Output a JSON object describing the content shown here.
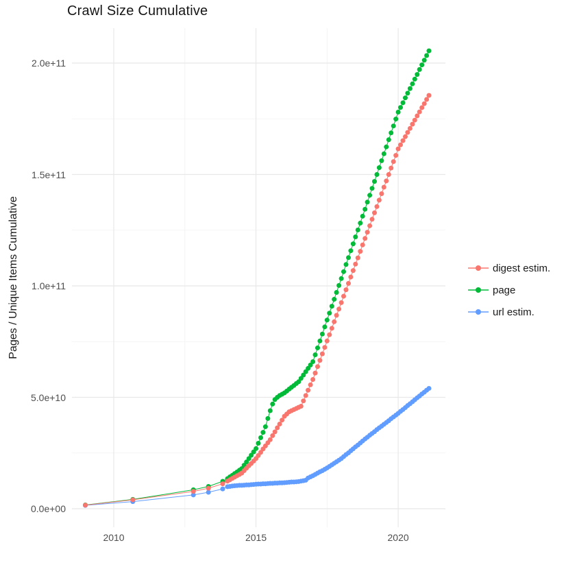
{
  "title": "Crawl Size Cumulative",
  "y_axis_title": "Pages / Unique Items Cumulative",
  "legend": {
    "items": [
      {
        "label": "digest estim.",
        "color": "#F8766D"
      },
      {
        "label": "page",
        "color": "#00BA38"
      },
      {
        "label": "url estim.",
        "color": "#619CFF"
      }
    ]
  },
  "colors": {
    "background": "#FFFFFF",
    "grid_major": "#E8E8E8",
    "grid_minor": "#F1F1F1",
    "tick_text": "#4D4D4D"
  },
  "chart_data": {
    "type": "scatter",
    "title": "Crawl Size Cumulative",
    "xlabel": "",
    "ylabel": "Pages / Unique Items Cumulative",
    "legend_position": "right",
    "grid": true,
    "value_unit": 1000000000.0,
    "x_domain": [
      2008.53,
      2021.66
    ],
    "y_domain": [
      -8.3,
      215.7
    ],
    "x_axis": {
      "ticks": [
        {
          "label": "2010",
          "value": 2010
        },
        {
          "label": "2015",
          "value": 2015
        },
        {
          "label": "2020",
          "value": 2020
        }
      ],
      "minor": [
        2012.5,
        2017.5
      ]
    },
    "y_axis": {
      "ticks": [
        {
          "label": "0.0e+00",
          "value": 0
        },
        {
          "label": "5.0e+10",
          "value": 50
        },
        {
          "label": "1.0e+11",
          "value": 100
        },
        {
          "label": "1.5e+11",
          "value": 150
        },
        {
          "label": "2.0e+11",
          "value": 200
        }
      ],
      "minor": [
        25,
        75,
        125,
        175
      ]
    },
    "x": [
      2009,
      2010.67,
      2012.8,
      2013.33,
      2013.83,
      2014,
      2014.083,
      2014.167,
      2014.25,
      2014.333,
      2014.417,
      2014.5,
      2014.583,
      2014.667,
      2014.75,
      2014.833,
      2014.917,
      2015,
      2015.083,
      2015.167,
      2015.25,
      2015.333,
      2015.417,
      2015.5,
      2015.583,
      2015.667,
      2015.75,
      2015.833,
      2015.917,
      2016,
      2016.083,
      2016.167,
      2016.25,
      2016.333,
      2016.417,
      2016.5,
      2016.583,
      2016.667,
      2016.75,
      2016.833,
      2016.917,
      2017,
      2017.083,
      2017.167,
      2017.25,
      2017.333,
      2017.417,
      2017.5,
      2017.583,
      2017.667,
      2017.75,
      2017.833,
      2017.917,
      2018,
      2018.083,
      2018.167,
      2018.25,
      2018.333,
      2018.417,
      2018.5,
      2018.583,
      2018.667,
      2018.75,
      2018.833,
      2018.917,
      2019,
      2019.083,
      2019.167,
      2019.25,
      2019.333,
      2019.417,
      2019.5,
      2019.583,
      2019.667,
      2019.75,
      2019.833,
      2019.917,
      2020,
      2020.083,
      2020.167,
      2020.25,
      2020.333,
      2020.417,
      2020.5,
      2020.583,
      2020.667,
      2020.75,
      2020.833,
      2020.917,
      2021,
      2021.083
    ],
    "series": [
      {
        "name": "digest estim.",
        "color": "#F8766D",
        "values": [
          1.6,
          4.0,
          7.8,
          9.2,
          11.2,
          12.4,
          13.0,
          13.6,
          14.2,
          14.8,
          15.4,
          16.0,
          17.1,
          18.2,
          19.3,
          20.3,
          21.4,
          22.5,
          23.9,
          25.3,
          26.8,
          28.2,
          29.6,
          31.0,
          32.8,
          34.5,
          36.3,
          38.0,
          39.8,
          41.5,
          42.5,
          43.5,
          44.0,
          44.5,
          45.0,
          45.5,
          46.0,
          48.4,
          50.8,
          53.2,
          55.6,
          58.0,
          60.9,
          63.8,
          66.6,
          69.5,
          72.4,
          75.3,
          78.1,
          81.0,
          83.9,
          86.8,
          89.6,
          92.5,
          95.4,
          98.3,
          101.1,
          104.0,
          106.9,
          109.8,
          112.6,
          115.5,
          118.4,
          121.3,
          124.1,
          127.0,
          129.9,
          132.8,
          135.6,
          138.5,
          141.4,
          144.3,
          147.1,
          150.0,
          152.9,
          155.8,
          158.6,
          161.5,
          163.3,
          165.2,
          167.0,
          168.9,
          170.7,
          172.6,
          174.4,
          176.3,
          178.1,
          180.0,
          181.8,
          183.7,
          185.5
        ]
      },
      {
        "name": "page",
        "color": "#00BA38",
        "values": [
          1.7,
          4.2,
          8.5,
          10.0,
          12.3,
          13.5,
          14.3,
          15.0,
          15.8,
          16.5,
          17.3,
          18.0,
          19.5,
          21.0,
          22.5,
          24.0,
          25.5,
          27.0,
          29.4,
          31.9,
          34.3,
          36.8,
          40.5,
          44.0,
          47.0,
          49.0,
          50.0,
          50.8,
          51.4,
          52.0,
          52.8,
          53.7,
          54.5,
          55.3,
          56.2,
          57.0,
          58.5,
          60.0,
          61.5,
          63.0,
          64.5,
          66.0,
          69.1,
          72.2,
          75.3,
          78.4,
          81.6,
          84.7,
          87.8,
          90.9,
          94.0,
          97.1,
          100.2,
          103.3,
          106.4,
          109.6,
          112.7,
          115.8,
          118.9,
          122.0,
          125.1,
          128.2,
          131.3,
          134.4,
          137.6,
          140.7,
          143.8,
          146.9,
          150.0,
          153.1,
          156.2,
          159.3,
          162.4,
          165.6,
          168.7,
          171.8,
          174.9,
          178.0,
          180.1,
          182.2,
          184.4,
          186.5,
          188.6,
          190.7,
          192.8,
          194.9,
          197.1,
          199.2,
          201.3,
          203.4,
          205.5
        ]
      },
      {
        "name": "url estim.",
        "color": "#619CFF",
        "values": [
          1.5,
          3.2,
          6.2,
          7.4,
          8.9,
          9.9,
          10.0,
          10.2,
          10.3,
          10.4,
          10.5,
          10.5,
          10.6,
          10.7,
          10.7,
          10.8,
          10.9,
          11.0,
          11.1,
          11.1,
          11.2,
          11.2,
          11.3,
          11.4,
          11.4,
          11.5,
          11.5,
          11.6,
          11.6,
          11.7,
          11.8,
          11.9,
          12.0,
          12.0,
          12.1,
          12.2,
          12.4,
          12.6,
          12.8,
          13.8,
          14.3,
          14.8,
          15.4,
          16.0,
          16.6,
          17.1,
          17.7,
          18.3,
          19.0,
          19.7,
          20.4,
          21.1,
          21.8,
          22.5,
          23.4,
          24.3,
          25.1,
          26.0,
          26.9,
          27.8,
          28.6,
          29.5,
          30.4,
          31.3,
          32.1,
          33.0,
          33.8,
          34.6,
          35.5,
          36.3,
          37.1,
          37.9,
          38.7,
          39.5,
          40.4,
          41.2,
          42.0,
          42.8,
          43.7,
          44.5,
          45.4,
          46.3,
          47.1,
          48.0,
          48.9,
          49.8,
          50.6,
          51.5,
          52.3,
          53.2,
          54.0
        ]
      }
    ]
  }
}
